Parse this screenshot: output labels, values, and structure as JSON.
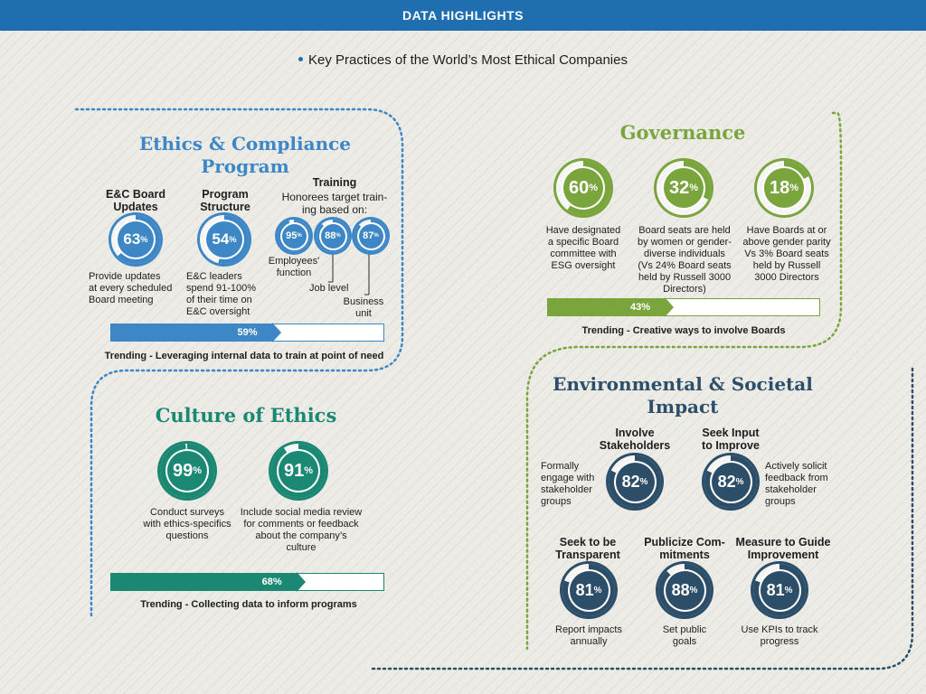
{
  "header": {
    "title": "DATA HIGHLIGHTS"
  },
  "subtitle": "Key Practices of the World’s Most Ethical Companies",
  "colors": {
    "blue": "#3d87c6",
    "green": "#7aa53d",
    "teal": "#1a8872",
    "navy": "#2c4e69"
  },
  "ethics": {
    "title_line1": "Ethics & Compliance",
    "title_line2": "Program",
    "board": {
      "head1": "E&C Board",
      "head2": "Updates",
      "value": 63,
      "label": "63",
      "desc1": "Provide updates",
      "desc2": "at every scheduled",
      "desc3": "Board meeting"
    },
    "structure": {
      "head1": "Program",
      "head2": "Structure",
      "value": 54,
      "label": "54",
      "desc1": "E&C leaders",
      "desc2": "spend 91-100%",
      "desc3": "of their time on",
      "desc4": "E&C oversight"
    },
    "training": {
      "head": "Training",
      "sub1": "Honorees target train-",
      "sub2": "ing based on:",
      "items": [
        {
          "value": 95,
          "label": "95",
          "text1": "Employees'",
          "text2": "function"
        },
        {
          "value": 88,
          "label": "88",
          "text1": "Job level",
          "text2": ""
        },
        {
          "value": 87,
          "label": "87",
          "text1": "Business",
          "text2": "unit"
        }
      ]
    },
    "trend": {
      "value": 59,
      "label": "59%",
      "text": "Trending - Leveraging internal data to train at point of need"
    }
  },
  "governance": {
    "title": "Governance",
    "items": [
      {
        "value": 60,
        "label": "60",
        "d1": "Have designated",
        "d2": "a specific Board",
        "d3": "committee with",
        "d4": "ESG oversight",
        "d5": ""
      },
      {
        "value": 32,
        "label": "32",
        "d1": "Board seats are held",
        "d2": "by women or gender-",
        "d3": "diverse individuals",
        "d4": "(Vs 24% Board seats",
        "d5": "held by  Russell 3000",
        "d6": "Directors)"
      },
      {
        "value": 18,
        "label": "18",
        "d1": "Have Boards at or",
        "d2": "above gender parity",
        "d3": "Vs 3% Board seats",
        "d4": "held by Russell",
        "d5": "3000 Directors"
      }
    ],
    "trend": {
      "value": 43,
      "label": "43%",
      "text": "Trending - Creative ways to involve Boards"
    }
  },
  "culture": {
    "title": "Culture of Ethics",
    "items": [
      {
        "value": 99,
        "label": "99",
        "d1": "Conduct surveys",
        "d2": "with ethics-specifics",
        "d3": "questions",
        "d4": ""
      },
      {
        "value": 91,
        "label": "91",
        "d1": "Include social media review",
        "d2": "for comments or feedback",
        "d3": "about the company’s",
        "d4": "culture"
      }
    ],
    "trend": {
      "value": 68,
      "label": "68%",
      "text": "Trending - Collecting data to inform programs"
    }
  },
  "env": {
    "title_line1": "Environmental & Societal",
    "title_line2": "Impact",
    "stake": {
      "head1": "Involve",
      "head2": "Stakeholders",
      "value": 82,
      "label": "82",
      "d1": "Formally",
      "d2": "engage with",
      "d3": "stakeholder",
      "d4": "groups"
    },
    "input": {
      "head1": "Seek Input",
      "head2": "to Improve",
      "value": 82,
      "label": "82",
      "d1": "Actively solicit",
      "d2": "feedback from",
      "d3": "stakeholder",
      "d4": "groups"
    },
    "transparent": {
      "head1": "Seek to be",
      "head2": "Transparent",
      "value": 81,
      "label": "81",
      "d1": "Report impacts",
      "d2": "annually"
    },
    "publicize": {
      "head1": "Publicize Com-",
      "head2": "mitments",
      "value": 88,
      "label": "88",
      "d1": "Set public",
      "d2": "goals"
    },
    "measure": {
      "head1": "Measure to Guide",
      "head2": "Improvement",
      "value": 81,
      "label": "81",
      "d1": "Use KPIs to track",
      "d2": "progress"
    }
  },
  "pct_sign": "%"
}
